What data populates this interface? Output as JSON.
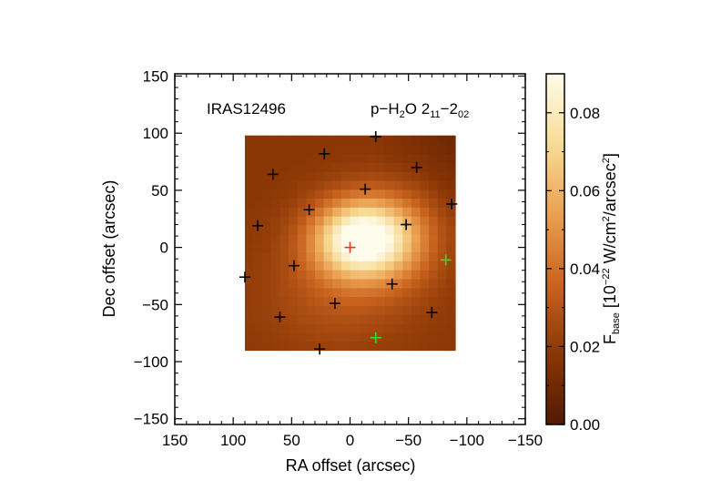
{
  "chart_data": {
    "type": "heatmap",
    "title_left": "IRAS12496",
    "title_right": {
      "prefix": "p−H",
      "sub1": "2",
      "mid": "O 2",
      "sub2": "11",
      "dash": "−2",
      "sub3": "02"
    },
    "xlabel": "RA offset (arcsec)",
    "ylabel": "Dec offset (arcsec)",
    "xlim": [
      150,
      -150
    ],
    "ylim": [
      -155,
      152
    ],
    "x_ticks": [
      150,
      100,
      50,
      0,
      -50,
      -100,
      -150
    ],
    "x_tick_labels": [
      "150",
      "100",
      "50",
      "0",
      "−50",
      "−100",
      "−150"
    ],
    "y_ticks": [
      -150,
      -100,
      -50,
      0,
      50,
      100,
      150
    ],
    "y_tick_labels": [
      "−150",
      "−100",
      "−50",
      "0",
      "50",
      "100",
      "150"
    ],
    "map_extent": {
      "x": [
        90,
        -90
      ],
      "y": [
        -90,
        98
      ]
    },
    "map_components": [
      {
        "x": -8,
        "y": 8,
        "sigma_x": 28,
        "sigma_y": 24,
        "amp": 0.075
      },
      {
        "x": -45,
        "y": 10,
        "sigma_x": 25,
        "sigma_y": 30,
        "amp": 0.02
      },
      {
        "x": 10,
        "y": -40,
        "sigma_x": 45,
        "sigma_y": 35,
        "amp": 0.012
      }
    ],
    "map_base": 0.018,
    "markers": [
      {
        "x": 0,
        "y": 0,
        "color": "#e8321e"
      },
      {
        "x": -22,
        "y": 97,
        "color": "#000000"
      },
      {
        "x": 22,
        "y": 82,
        "color": "#000000"
      },
      {
        "x": 66,
        "y": 64,
        "color": "#000000"
      },
      {
        "x": -57,
        "y": 70,
        "color": "#000000"
      },
      {
        "x": -13,
        "y": 51,
        "color": "#000000"
      },
      {
        "x": 35,
        "y": 33,
        "color": "#000000"
      },
      {
        "x": -87,
        "y": 38,
        "color": "#000000"
      },
      {
        "x": 79,
        "y": 19,
        "color": "#000000"
      },
      {
        "x": -48,
        "y": 20,
        "color": "#000000"
      },
      {
        "x": -82,
        "y": -11,
        "color": "#33dd33"
      },
      {
        "x": 48,
        "y": -16,
        "color": "#000000"
      },
      {
        "x": 90,
        "y": -26,
        "color": "#000000"
      },
      {
        "x": -36,
        "y": -32,
        "color": "#000000"
      },
      {
        "x": 13,
        "y": -49,
        "color": "#000000"
      },
      {
        "x": -70,
        "y": -57,
        "color": "#000000"
      },
      {
        "x": 60,
        "y": -61,
        "color": "#000000"
      },
      {
        "x": -22,
        "y": -79,
        "color": "#33dd33"
      },
      {
        "x": 26,
        "y": -89,
        "color": "#000000"
      }
    ],
    "colorbar": {
      "range": [
        0,
        0.09
      ],
      "ticks": [
        0.0,
        0.02,
        0.04,
        0.06,
        0.08
      ],
      "tick_labels": [
        "0.00",
        "0.02",
        "0.04",
        "0.06",
        "0.08"
      ],
      "label": {
        "F": "F",
        "F_sub": "base",
        "open": " [10",
        "exp": "−22",
        "mid": " W/cm",
        "exp2": "2",
        "slash": "/arcsec",
        "exp3": "2",
        "close": "]"
      },
      "colormap": [
        "#521a03",
        "#8a3605",
        "#c9631f",
        "#eaa050",
        "#f8dc96",
        "#fefcec"
      ]
    }
  }
}
